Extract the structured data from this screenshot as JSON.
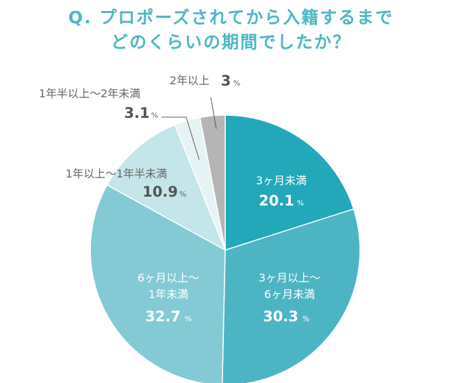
{
  "title_line1": "Q. プロポーズされてから入籍するまで",
  "title_line2": "どのくらいの期間でしたか？",
  "chart_data": {
    "type": "pie",
    "title": "Q. プロポーズされてから入籍するまで どのくらいの期間でしたか？",
    "unit": "%",
    "slices": [
      {
        "label": "3ヶ月未満",
        "value": 20.1,
        "value_text": "20.1",
        "color": "#22a8b8"
      },
      {
        "label": "3ヶ月以上〜 6ヶ月未満",
        "value": 30.3,
        "value_text": "30.3",
        "color": "#4db4c4"
      },
      {
        "label": "6ヶ月以上〜 1年未満",
        "value": 32.7,
        "value_text": "32.7",
        "color": "#83cad5"
      },
      {
        "label": "1年以上〜1年半未満",
        "value": 10.9,
        "value_text": "10.9",
        "color": "#c4e5ea"
      },
      {
        "label": "1年半以上〜2年未満",
        "value": 3.1,
        "value_text": "3.1",
        "color": "#e6f3f5"
      },
      {
        "label": "2年以上",
        "value": 3,
        "value_text": "3",
        "color": "#b5b5b5"
      }
    ]
  }
}
